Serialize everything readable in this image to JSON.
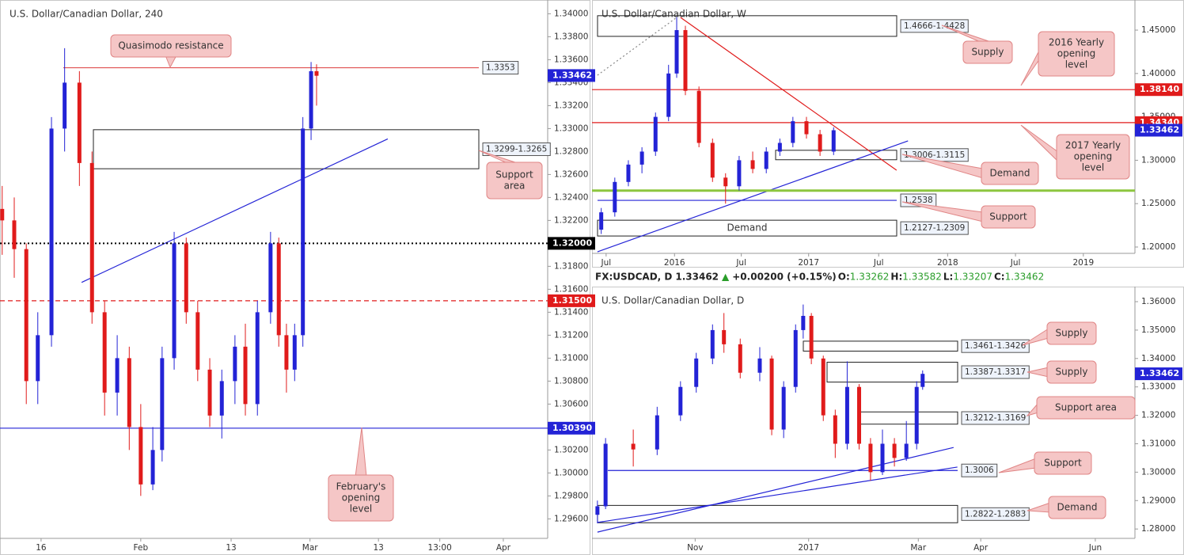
{
  "chart_data": [
    {
      "type": "candlestick",
      "title": "U.S. Dollar/Canadian Dollar, 240",
      "up_color": "#2323d6",
      "down_color": "#e01b1b",
      "xlim": [
        0,
        100
      ],
      "ylim": [
        1.2943,
        1.3412
      ],
      "xticks": [
        {
          "value": 7.5,
          "label": "16"
        },
        {
          "value": 25.7,
          "label": "Feb"
        },
        {
          "value": 42.2,
          "label": "13"
        },
        {
          "value": 56.6,
          "label": "Mar"
        },
        {
          "value": 69.1,
          "label": "13"
        },
        {
          "value": 80.3,
          "label": "13:00"
        },
        {
          "value": 91.9,
          "label": "Apr"
        }
      ],
      "yticks": [
        {
          "value": 1.296,
          "label": "1.29600"
        },
        {
          "value": 1.298,
          "label": "1.29800"
        },
        {
          "value": 1.3,
          "label": "1.30000"
        },
        {
          "value": 1.302,
          "label": "1.30200"
        },
        {
          "value": 1.304,
          "label": "1.30400"
        },
        {
          "value": 1.306,
          "label": "1.30600"
        },
        {
          "value": 1.308,
          "label": "1.30800"
        },
        {
          "value": 1.31,
          "label": "1.31000"
        },
        {
          "value": 1.312,
          "label": "1.31200"
        },
        {
          "value": 1.314,
          "label": "1.31400"
        },
        {
          "value": 1.316,
          "label": "1.31600"
        },
        {
          "value": 1.318,
          "label": "1.31800"
        },
        {
          "value": 1.32,
          "label": "1.32000"
        },
        {
          "value": 1.322,
          "label": "1.32200"
        },
        {
          "value": 1.324,
          "label": "1.32400"
        },
        {
          "value": 1.326,
          "label": "1.32600"
        },
        {
          "value": 1.328,
          "label": "1.32800"
        },
        {
          "value": 1.33,
          "label": "1.33000"
        },
        {
          "value": 1.332,
          "label": "1.33200"
        },
        {
          "value": 1.334,
          "label": "1.33400"
        },
        {
          "value": 1.336,
          "label": "1.33600"
        },
        {
          "value": 1.338,
          "label": "1.33800"
        },
        {
          "value": 1.34,
          "label": "1.34000"
        }
      ],
      "candles": {
        "x": [
          0.4,
          2.6,
          4.8,
          6.9,
          9.4,
          11.8,
          14.5,
          16.8,
          19.1,
          21.4,
          23.6,
          25.7,
          27.9,
          29.6,
          31.8,
          34.0,
          36.1,
          38.3,
          40.5,
          42.9,
          44.8,
          47.0,
          49.4,
          50.9,
          52.3,
          53.8,
          55.3,
          56.8,
          57.8
        ],
        "open": [
          1.323,
          1.322,
          1.3195,
          1.308,
          1.312,
          1.33,
          1.334,
          1.327,
          1.314,
          1.307,
          1.31,
          1.304,
          1.299,
          1.302,
          1.31,
          1.32,
          1.314,
          1.309,
          1.305,
          1.308,
          1.311,
          1.306,
          1.314,
          1.32,
          1.312,
          1.309,
          1.312,
          1.33,
          1.335
        ],
        "high": [
          1.325,
          1.324,
          1.32,
          1.314,
          1.331,
          1.337,
          1.335,
          1.328,
          1.315,
          1.312,
          1.311,
          1.306,
          1.304,
          1.311,
          1.321,
          1.3205,
          1.315,
          1.31,
          1.309,
          1.312,
          1.313,
          1.315,
          1.321,
          1.3205,
          1.313,
          1.313,
          1.331,
          1.3358,
          1.3356
        ],
        "low": [
          1.319,
          1.317,
          1.306,
          1.306,
          1.311,
          1.328,
          1.325,
          1.313,
          1.305,
          1.305,
          1.302,
          1.298,
          1.2985,
          1.301,
          1.309,
          1.313,
          1.308,
          1.304,
          1.303,
          1.306,
          1.305,
          1.305,
          1.313,
          1.311,
          1.307,
          1.308,
          1.311,
          1.329,
          1.332
        ],
        "close": [
          1.322,
          1.3195,
          1.308,
          1.312,
          1.33,
          1.334,
          1.327,
          1.314,
          1.307,
          1.31,
          1.304,
          1.299,
          1.302,
          1.31,
          1.32,
          1.314,
          1.309,
          1.305,
          1.308,
          1.311,
          1.306,
          1.314,
          1.32,
          1.312,
          1.309,
          1.312,
          1.33,
          1.335,
          1.3346
        ]
      },
      "last": {
        "value": 1.33462,
        "label": "1.33462",
        "color": "#2323d6"
      },
      "levels": [
        {
          "value": 1.3353,
          "color": "#e05050",
          "style": "solid",
          "label": "1.3353"
        },
        {
          "value": 1.32,
          "color": "#000000",
          "style": "dotted",
          "tag": "1.32000"
        },
        {
          "value": 1.315,
          "color": "#e01b1b",
          "style": "dashed",
          "tag": "1.31500"
        },
        {
          "value": 1.3039,
          "color": "#2323d6",
          "style": "solid",
          "tag": "1.30390"
        }
      ],
      "zones": [
        {
          "top": 1.3299,
          "bottom": 1.3265,
          "label": "1.3299-1.3265"
        }
      ],
      "trendlines": [
        {
          "x": [
            14.9,
            70.8
          ],
          "y": [
            1.3166,
            1.3291
          ],
          "color": "#2323d6",
          "style": "solid"
        }
      ],
      "callouts": [
        {
          "lines": [
            "Quasimodo resistance"
          ]
        },
        {
          "lines": [
            "Support",
            "area"
          ]
        },
        {
          "lines": [
            "February's",
            "opening",
            "level"
          ]
        }
      ]
    },
    {
      "type": "candlestick",
      "title": "U.S. Dollar/Canadian Dollar, W",
      "up_color": "#2323d6",
      "down_color": "#e01b1b",
      "xlim": [
        0,
        100
      ],
      "ylim": [
        1.1927,
        1.4847
      ],
      "xticks": [
        {
          "value": 2.6,
          "label": "Jul"
        },
        {
          "value": 15.2,
          "label": "2016"
        },
        {
          "value": 27.5,
          "label": "Jul"
        },
        {
          "value": 39.9,
          "label": "2017"
        },
        {
          "value": 52.8,
          "label": "Jul"
        },
        {
          "value": 65.5,
          "label": "2018"
        },
        {
          "value": 78.0,
          "label": "Jul"
        },
        {
          "value": 90.5,
          "label": "2019"
        }
      ],
      "yticks": [
        {
          "value": 1.2,
          "label": "1.20000"
        },
        {
          "value": 1.25,
          "label": "1.25000"
        },
        {
          "value": 1.3,
          "label": "1.30000"
        },
        {
          "value": 1.35,
          "label": "1.35000"
        },
        {
          "value": 1.4,
          "label": "1.40000"
        },
        {
          "value": 1.45,
          "label": "1.45000"
        }
      ],
      "candles": {
        "x": [
          1.7,
          4.2,
          6.7,
          9.2,
          11.7,
          14.1,
          15.6,
          17.2,
          19.7,
          22.2,
          24.6,
          27.1,
          29.6,
          32.1,
          34.6,
          37.0,
          39.5,
          42.0,
          44.5
        ],
        "open": [
          1.22,
          1.24,
          1.275,
          1.295,
          1.31,
          1.35,
          1.4,
          1.45,
          1.38,
          1.32,
          1.28,
          1.27,
          1.3,
          1.29,
          1.31,
          1.32,
          1.345,
          1.33,
          1.31
        ],
        "high": [
          1.245,
          1.28,
          1.3,
          1.315,
          1.355,
          1.41,
          1.465,
          1.455,
          1.385,
          1.325,
          1.285,
          1.305,
          1.31,
          1.315,
          1.325,
          1.35,
          1.35,
          1.335,
          1.338
        ],
        "low": [
          1.215,
          1.235,
          1.27,
          1.285,
          1.305,
          1.345,
          1.395,
          1.375,
          1.315,
          1.275,
          1.25,
          1.265,
          1.285,
          1.285,
          1.305,
          1.315,
          1.325,
          1.305,
          1.306
        ],
        "close": [
          1.24,
          1.275,
          1.295,
          1.31,
          1.35,
          1.4,
          1.45,
          1.38,
          1.32,
          1.28,
          1.27,
          1.3,
          1.29,
          1.31,
          1.32,
          1.345,
          1.33,
          1.31,
          1.3346
        ]
      },
      "last": {
        "value": 1.33462,
        "label": "1.33462",
        "color": "#2323d6"
      },
      "levels": [
        {
          "value": 1.3814,
          "color": "#e01b1b",
          "style": "solid",
          "tag": "1.38140"
        },
        {
          "value": 1.3434,
          "color": "#e01b1b",
          "style": "solid",
          "tag": "1.34340"
        },
        {
          "value": 1.265,
          "color": "#8dc63f",
          "style": "thick"
        },
        {
          "value": 1.2538,
          "color": "#2323d6",
          "style": "solid",
          "label": "1.2538"
        }
      ],
      "zones": [
        {
          "top": 1.4666,
          "bottom": 1.4428,
          "label": "1.4666-1.4428"
        },
        {
          "top": 1.3115,
          "bottom": 1.3006,
          "label": "1.3006-1.3115"
        },
        {
          "top": 1.2309,
          "bottom": 1.2127,
          "label": "1.2127-1.2309",
          "text": "Demand"
        }
      ],
      "trendlines": [
        {
          "x": [
            16.3,
            56.1
          ],
          "y": [
            1.4646,
            1.2885
          ],
          "color": "#e01b1b",
          "style": "solid"
        },
        {
          "x": [
            1.0,
            58.2
          ],
          "y": [
            1.1945,
            1.3223
          ],
          "color": "#2323d6",
          "style": "solid"
        },
        {
          "x": [
            1.0,
            15.6
          ],
          "y": [
            1.398,
            1.4646
          ],
          "color": "#888888",
          "style": "dotted"
        }
      ],
      "callouts": [
        {
          "lines": [
            "Supply"
          ]
        },
        {
          "lines": [
            "2016 Yearly",
            "opening",
            "level"
          ]
        },
        {
          "lines": [
            "2017 Yearly",
            "opening",
            "level"
          ]
        },
        {
          "lines": [
            "Demand"
          ]
        },
        {
          "lines": [
            "Support"
          ]
        }
      ]
    },
    {
      "type": "candlestick",
      "title": "U.S. Dollar/Canadian Dollar, D",
      "header": {
        "symbol": "FX:USDCAD, D",
        "price": "1.33462",
        "arrow": "▲",
        "change": "+0.00200 (+0.15%)",
        "ohlc": [
          {
            "label": "O:",
            "value": "1.33262"
          },
          {
            "label": "H:",
            "value": "1.33582"
          },
          {
            "label": "L:",
            "value": "1.33207"
          },
          {
            "label": "C:",
            "value": "1.33462"
          }
        ]
      },
      "up_color": "#2323d6",
      "down_color": "#e01b1b",
      "xlim": [
        0,
        100
      ],
      "ylim": [
        1.2767,
        1.3653
      ],
      "xticks": [
        {
          "value": 19.0,
          "label": "Nov"
        },
        {
          "value": 39.9,
          "label": "2017"
        },
        {
          "value": 60.1,
          "label": "Mar"
        },
        {
          "value": 71.6,
          "label": "Apr"
        },
        {
          "value": 92.7,
          "label": "Jun"
        }
      ],
      "yticks": [
        {
          "value": 1.28,
          "label": "1.28000"
        },
        {
          "value": 1.29,
          "label": "1.29000"
        },
        {
          "value": 1.3,
          "label": "1.30000"
        },
        {
          "value": 1.31,
          "label": "1.31000"
        },
        {
          "value": 1.32,
          "label": "1.32000"
        },
        {
          "value": 1.33,
          "label": "1.33000"
        },
        {
          "value": 1.34,
          "label": "1.34000"
        },
        {
          "value": 1.35,
          "label": "1.35000"
        },
        {
          "value": 1.36,
          "label": "1.36000"
        }
      ],
      "candles": {
        "x": [
          1.0,
          2.5,
          7.6,
          12.0,
          16.3,
          19.2,
          22.2,
          24.3,
          27.3,
          30.9,
          33.1,
          35.3,
          37.5,
          38.9,
          40.4,
          42.6,
          44.8,
          47.0,
          49.2,
          51.3,
          53.5,
          55.7,
          57.9,
          59.8,
          60.9
        ],
        "open": [
          1.285,
          1.288,
          1.31,
          1.308,
          1.32,
          1.33,
          1.34,
          1.35,
          1.345,
          1.335,
          1.34,
          1.315,
          1.33,
          1.35,
          1.355,
          1.34,
          1.32,
          1.31,
          1.33,
          1.31,
          1.3,
          1.31,
          1.305,
          1.31,
          1.33
        ],
        "high": [
          1.29,
          1.312,
          1.315,
          1.323,
          1.332,
          1.342,
          1.352,
          1.356,
          1.347,
          1.344,
          1.341,
          1.332,
          1.352,
          1.359,
          1.356,
          1.341,
          1.322,
          1.339,
          1.331,
          1.312,
          1.315,
          1.312,
          1.318,
          1.332,
          1.3358
        ],
        "low": [
          1.282,
          1.287,
          1.302,
          1.306,
          1.318,
          1.328,
          1.338,
          1.342,
          1.333,
          1.332,
          1.313,
          1.312,
          1.328,
          1.347,
          1.338,
          1.318,
          1.305,
          1.308,
          1.308,
          1.297,
          1.299,
          1.302,
          1.304,
          1.308,
          1.329
        ],
        "close": [
          1.288,
          1.31,
          1.308,
          1.32,
          1.33,
          1.34,
          1.35,
          1.345,
          1.335,
          1.34,
          1.315,
          1.33,
          1.35,
          1.355,
          1.34,
          1.32,
          1.31,
          1.33,
          1.31,
          1.3,
          1.31,
          1.305,
          1.31,
          1.33,
          1.3346
        ]
      },
      "last": {
        "value": 1.33462,
        "label": "1.33462",
        "color": "#2323d6"
      },
      "levels": [
        {
          "value": 1.3006,
          "color": "#2323d6",
          "style": "solid",
          "label": "1.3006"
        }
      ],
      "zones": [
        {
          "top": 1.3461,
          "bottom": 1.3426,
          "label": "1.3461-1.3426"
        },
        {
          "top": 1.3387,
          "bottom": 1.3317,
          "label": "1.3387-1.3317"
        },
        {
          "top": 1.3212,
          "bottom": 1.3169,
          "label": "1.3212-1.3169"
        },
        {
          "top": 1.2883,
          "bottom": 1.2822,
          "label": "1.2822-1.2883"
        }
      ],
      "trendlines": [
        {
          "x": [
            1.0,
            67.3
          ],
          "y": [
            1.2823,
            1.3018
          ],
          "color": "#2323d6",
          "style": "solid"
        },
        {
          "x": [
            1.0,
            66.6
          ],
          "y": [
            1.2789,
            1.3087
          ],
          "color": "#2323d6",
          "style": "solid"
        }
      ],
      "callouts": [
        {
          "lines": [
            "Supply"
          ]
        },
        {
          "lines": [
            "Supply"
          ]
        },
        {
          "lines": [
            "Support area"
          ]
        },
        {
          "lines": [
            "Support"
          ]
        },
        {
          "lines": [
            "Demand"
          ]
        }
      ]
    }
  ]
}
